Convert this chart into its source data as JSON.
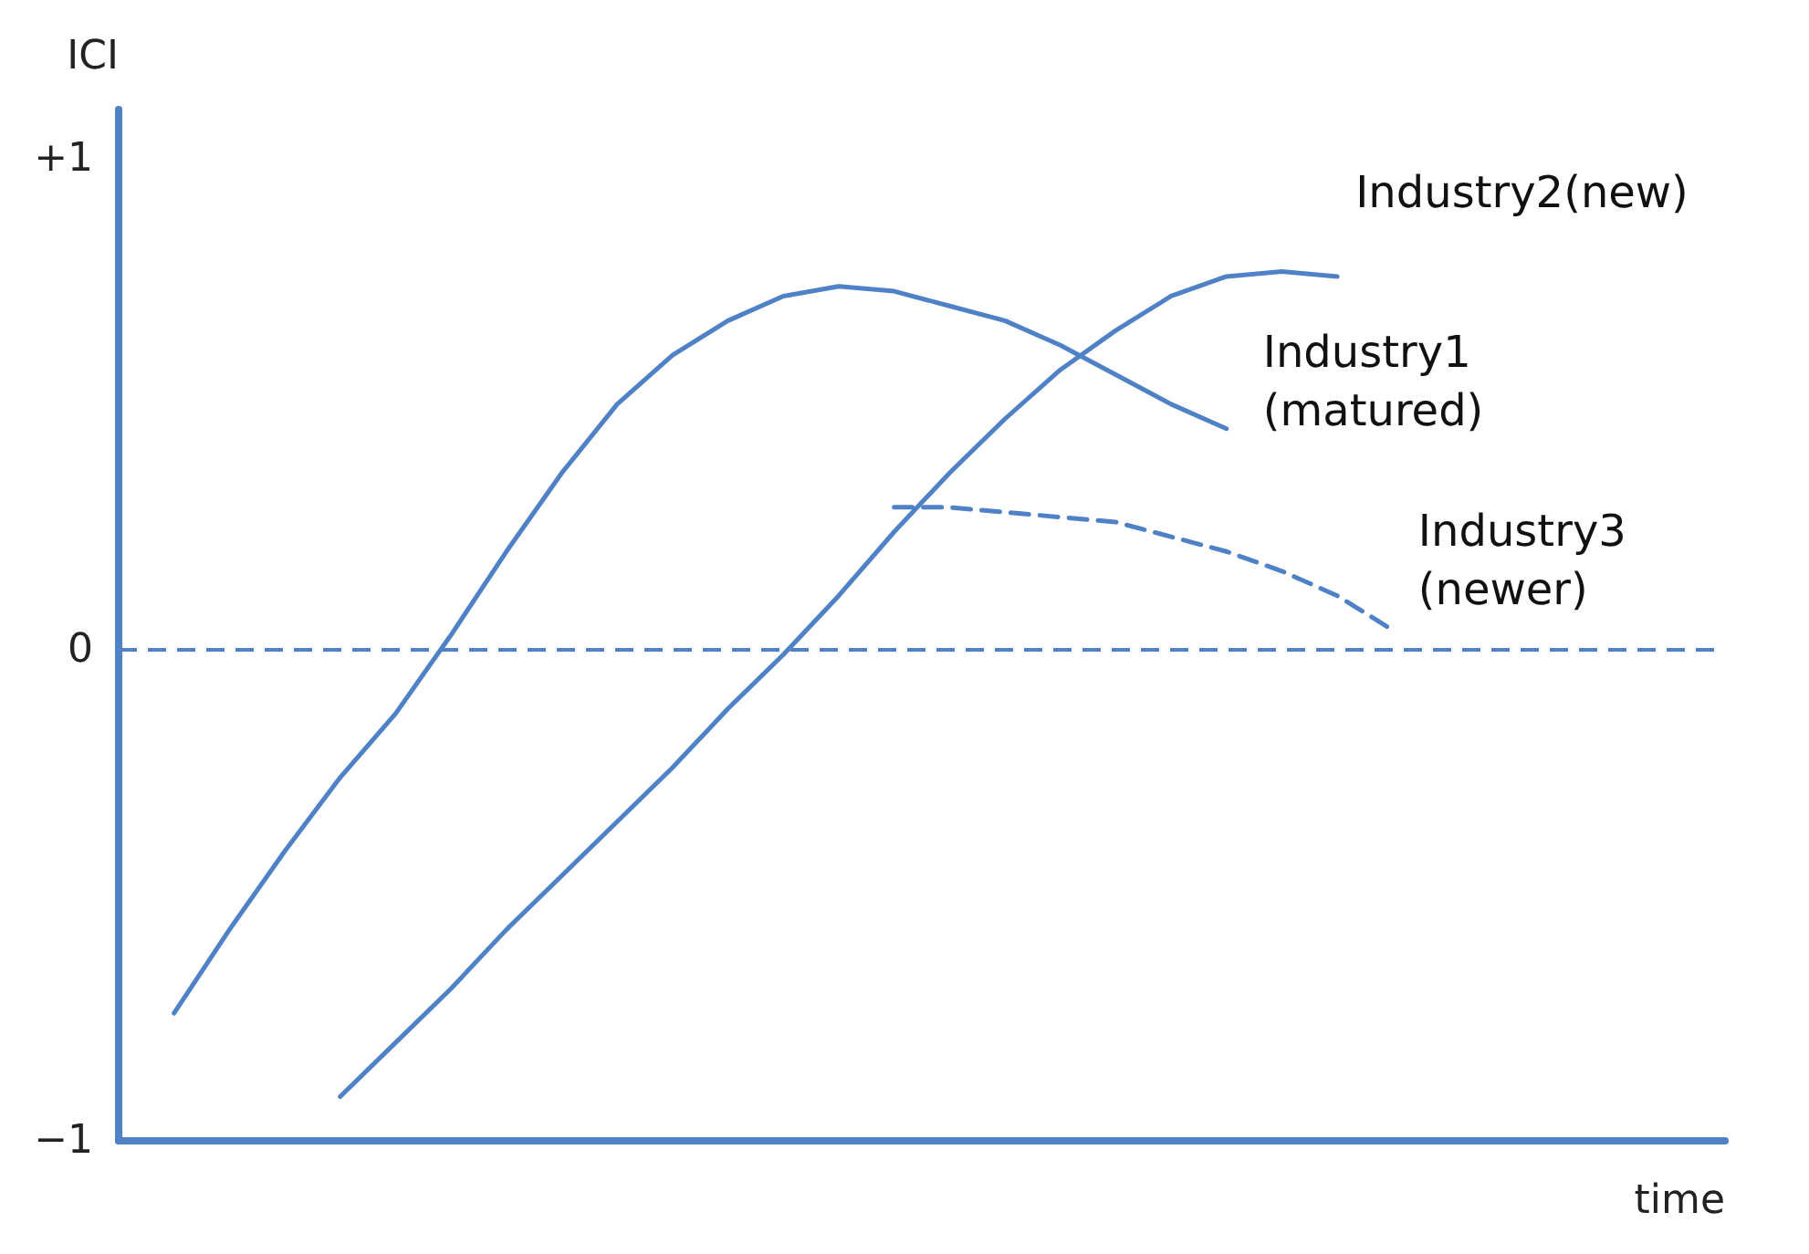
{
  "chart_data": {
    "type": "line",
    "xlabel": "time",
    "ylabel": "ICI",
    "categories": [
      null,
      null,
      null,
      null,
      null,
      null,
      null,
      null,
      null,
      null,
      null,
      null,
      null,
      null,
      null,
      null,
      null,
      null,
      null,
      null,
      null,
      null,
      null,
      null,
      null,
      null,
      null,
      null,
      null,
      null
    ],
    "series": [
      {
        "name": "Industry1 (matured)",
        "color": "#4f81c7",
        "line_style": "solid",
        "values": [
          null,
          -0.74,
          -0.57,
          -0.41,
          -0.26,
          -0.13,
          0.03,
          0.2,
          0.36,
          0.5,
          0.6,
          0.67,
          0.72,
          0.74,
          0.73,
          0.7,
          0.67,
          0.62,
          0.56,
          0.5,
          0.45,
          null,
          null,
          null,
          null,
          null,
          null,
          null,
          null,
          null
        ]
      },
      {
        "name": "Industry2(new)",
        "color": "#4f81c7",
        "line_style": "solid",
        "values": [
          null,
          null,
          null,
          null,
          -0.91,
          -0.8,
          -0.69,
          -0.57,
          -0.46,
          -0.35,
          -0.24,
          -0.12,
          -0.01,
          0.11,
          0.24,
          0.36,
          0.47,
          0.57,
          0.65,
          0.72,
          0.76,
          0.77,
          0.76,
          null,
          null,
          null,
          null,
          null,
          null,
          null
        ]
      },
      {
        "name": "Industry3 (newer)",
        "color": "#4f81c7",
        "line_style": "dashed",
        "values": [
          null,
          null,
          null,
          null,
          null,
          null,
          null,
          null,
          null,
          null,
          null,
          null,
          null,
          null,
          0.29,
          0.29,
          0.28,
          0.27,
          0.26,
          0.23,
          0.2,
          0.16,
          0.11,
          0.04,
          null,
          null,
          null,
          null,
          null,
          null
        ]
      }
    ],
    "ref_lines": [
      {
        "axis": "y",
        "value": 0,
        "color": "#4f81c7",
        "line_style": "dashed"
      }
    ],
    "ylim": [
      -1,
      1.1
    ],
    "yticks": [
      {
        "value": 1,
        "label": "+1"
      },
      0,
      {
        "value": -1,
        "label": "−1"
      }
    ],
    "tick_labels": "y",
    "grid": false,
    "legend": false,
    "marker": "none"
  }
}
